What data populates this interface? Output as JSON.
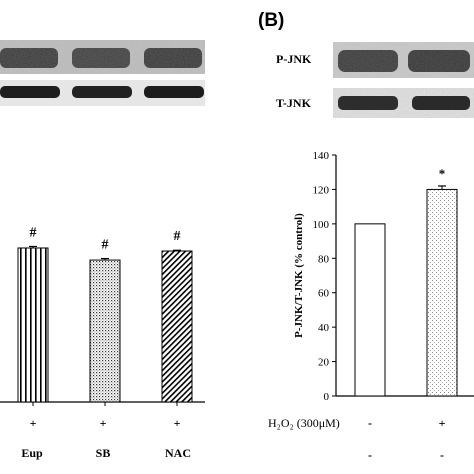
{
  "panel_b_label": "(B)",
  "blots": {
    "top_label": "P-JNK",
    "bottom_label": "T-JNK"
  },
  "conditions_left": {
    "row1": [
      "+",
      "+",
      "+"
    ],
    "row2": [
      "Eup",
      "SB",
      "NAC"
    ]
  },
  "conditions_right": {
    "treatment_label": "H₂O₂ (300μM)",
    "row1": [
      "-",
      "+"
    ],
    "row2": [
      "-",
      "-"
    ]
  },
  "chart_data": [
    {
      "type": "bar",
      "categories": [
        "Eup",
        "SB",
        "NAC"
      ],
      "values": [
        102,
        94,
        100
      ],
      "errors": [
        1,
        1,
        0.5
      ],
      "annotations": [
        "#",
        "#",
        "#"
      ],
      "title": "",
      "xlabel": "",
      "ylabel": "",
      "ylim": [
        0,
        140
      ]
    },
    {
      "type": "bar",
      "categories": [
        "-",
        "+"
      ],
      "values": [
        100,
        120
      ],
      "errors": [
        0,
        2
      ],
      "annotations": [
        "",
        "*"
      ],
      "ylabel": "P-JNK/T-JNK (% control)",
      "ylim": [
        0,
        140
      ],
      "yticks": [
        0,
        20,
        40,
        60,
        80,
        100,
        120,
        140
      ]
    }
  ]
}
